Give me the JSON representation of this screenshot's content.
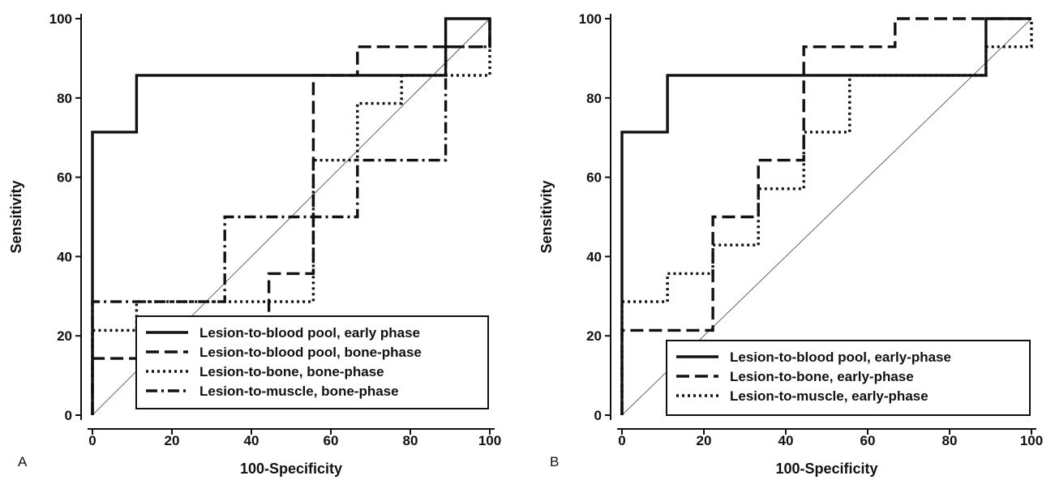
{
  "chart_data": [
    {
      "panel_label": "A",
      "type": "line",
      "xlabel": "100-Specificity",
      "ylabel": "Sensitivity",
      "xlim": [
        0,
        100
      ],
      "ylim": [
        0,
        100
      ],
      "xticks": [
        0,
        20,
        40,
        60,
        80,
        100
      ],
      "yticks": [
        0,
        20,
        40,
        60,
        80,
        100
      ],
      "grid": false,
      "legend_position": "bottom-right",
      "reference_line": {
        "x": [
          0,
          100
        ],
        "y": [
          0,
          100
        ],
        "style": "thin-gray-diagonal"
      },
      "series": [
        {
          "name": "Lesion-to-blood pool, early phase",
          "style": "solid",
          "x": [
            0,
            0,
            11.1,
            11.1,
            88.9,
            88.9,
            100,
            100
          ],
          "y": [
            0,
            71.4,
            71.4,
            85.7,
            85.7,
            100,
            100,
            92.9
          ]
        },
        {
          "name": "Lesion-to-blood pool, bone-phase",
          "style": "dashed",
          "x": [
            0,
            0,
            44.4,
            44.4,
            55.6,
            55.6,
            66.7,
            66.7,
            100,
            100
          ],
          "y": [
            0,
            14.3,
            14.3,
            35.7,
            35.7,
            85.7,
            85.7,
            92.9,
            92.9,
            100
          ]
        },
        {
          "name": "Lesion-to-bone, bone-phase",
          "style": "dotted",
          "x": [
            0,
            0,
            11.1,
            11.1,
            55.6,
            55.6,
            66.7,
            66.7,
            77.8,
            77.8,
            100,
            100
          ],
          "y": [
            0,
            21.4,
            21.4,
            28.6,
            28.6,
            64.3,
            64.3,
            78.6,
            78.6,
            85.7,
            85.7,
            100
          ]
        },
        {
          "name": "Lesion-to-muscle, bone-phase",
          "style": "dash-dot",
          "x": [
            0,
            0,
            33.3,
            33.3,
            66.7,
            66.7,
            88.9,
            88.9,
            100,
            100
          ],
          "y": [
            0,
            28.6,
            28.6,
            50,
            50,
            64.3,
            64.3,
            92.9,
            92.9,
            100
          ]
        }
      ]
    },
    {
      "panel_label": "B",
      "type": "line",
      "xlabel": "100-Specificity",
      "ylabel": "Sensitivity",
      "xlim": [
        0,
        100
      ],
      "ylim": [
        0,
        100
      ],
      "xticks": [
        0,
        20,
        40,
        60,
        80,
        100
      ],
      "yticks": [
        0,
        20,
        40,
        60,
        80,
        100
      ],
      "grid": false,
      "legend_position": "bottom-right",
      "reference_line": {
        "x": [
          0,
          100
        ],
        "y": [
          0,
          100
        ],
        "style": "thin-gray-diagonal"
      },
      "series": [
        {
          "name": "Lesion-to-blood pool, early-phase",
          "style": "solid",
          "x": [
            0,
            0,
            11.1,
            11.1,
            88.9,
            88.9,
            100
          ],
          "y": [
            0,
            71.4,
            71.4,
            85.7,
            85.7,
            100,
            100
          ]
        },
        {
          "name": "Lesion-to-bone, early-phase",
          "style": "dashed",
          "x": [
            0,
            0,
            22.2,
            22.2,
            33.3,
            33.3,
            44.4,
            44.4,
            66.7,
            66.7,
            100
          ],
          "y": [
            0,
            21.4,
            21.4,
            50,
            50,
            64.3,
            64.3,
            92.9,
            92.9,
            100,
            100
          ]
        },
        {
          "name": "Lesion-to-muscle, early-phase",
          "style": "dotted",
          "x": [
            0,
            0,
            11.1,
            11.1,
            22.2,
            22.2,
            33.3,
            33.3,
            44.4,
            44.4,
            55.6,
            55.6,
            88.9,
            88.9,
            100,
            100
          ],
          "y": [
            0,
            28.6,
            28.6,
            35.7,
            35.7,
            42.9,
            42.9,
            57.1,
            57.1,
            71.4,
            71.4,
            85.7,
            85.7,
            92.9,
            92.9,
            100
          ]
        }
      ]
    }
  ]
}
